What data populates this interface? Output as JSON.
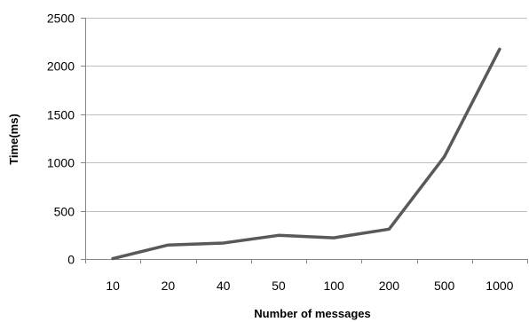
{
  "chart_data": {
    "type": "line",
    "title": "",
    "xlabel": "Number of messages",
    "ylabel": "Time(ms)",
    "categories": [
      "10",
      "20",
      "40",
      "50",
      "100",
      "200",
      "500",
      "1000"
    ],
    "series": [
      {
        "values": [
          5,
          145,
          165,
          245,
          220,
          310,
          1060,
          2175
        ],
        "color": "#595959"
      }
    ],
    "ylim": [
      0,
      2500
    ],
    "yticks": [
      0,
      500,
      1000,
      1500,
      2000,
      2500
    ],
    "grid": true,
    "legend": "none"
  }
}
